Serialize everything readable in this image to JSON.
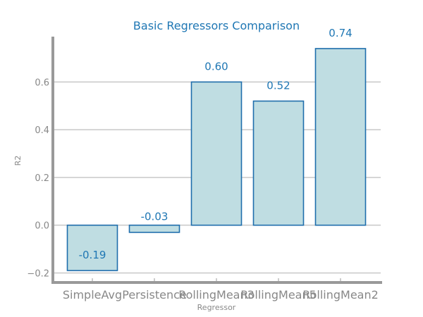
{
  "chart_data": {
    "type": "bar",
    "title": "Basic Regressors Comparison",
    "xlabel": "Regressor",
    "ylabel": "R2",
    "categories": [
      "SimpleAvg",
      "Persistence",
      "RollingMean3",
      "RollingMean5",
      "RollingMean2"
    ],
    "values": [
      -0.19,
      -0.03,
      0.6,
      0.52,
      0.74
    ],
    "data_labels": [
      "-0.19",
      "-0.03",
      "0.60",
      "0.52",
      "0.74"
    ],
    "ylim": [
      -0.24,
      0.79
    ],
    "yticks": [
      -0.2,
      0.0,
      0.2,
      0.4,
      0.6
    ],
    "ytick_labels": [
      "−0.2",
      "0.0",
      "0.2",
      "0.4",
      "0.6"
    ],
    "grid": "horizontal",
    "legend": "none",
    "colors": {
      "bar_fill": "#bfdde2",
      "bar_edge": "#1f6eac",
      "title": "#1f77b4",
      "data_label": "#1f77b4",
      "grid": "#c8c8c8",
      "axis": "#999999",
      "tick_text": "#888888"
    }
  }
}
